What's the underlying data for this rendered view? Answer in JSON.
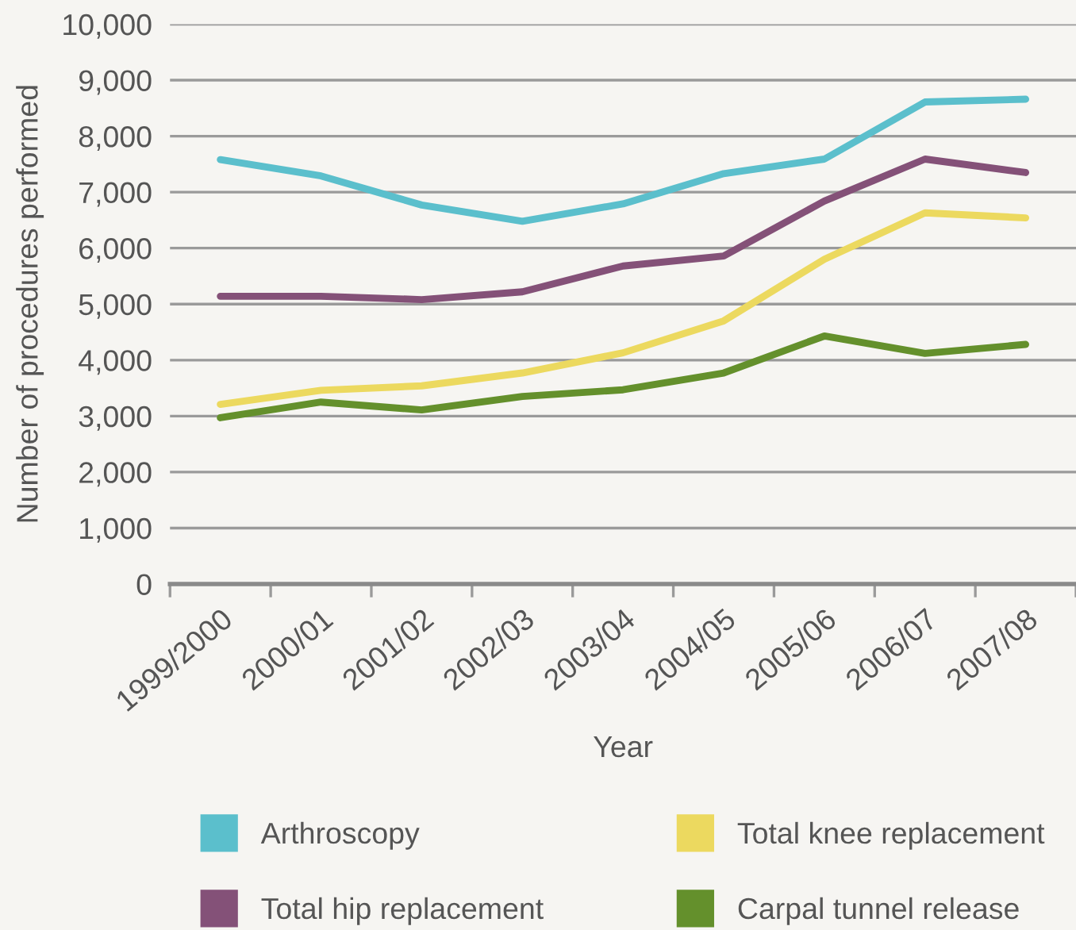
{
  "chart_data": {
    "type": "line",
    "xlabel": "Year",
    "ylabel": "Number of procedures performed",
    "categories": [
      "1999/2000",
      "2000/01",
      "2001/02",
      "2002/03",
      "2003/04",
      "2004/05",
      "2005/06",
      "2006/07",
      "2007/08"
    ],
    "series": [
      {
        "name": "Arthroscopy",
        "color": "#5bbfcc",
        "values": [
          7580,
          7290,
          6770,
          6480,
          6790,
          7330,
          7590,
          8610,
          8660
        ]
      },
      {
        "name": "Total hip replacement",
        "color": "#845178",
        "values": [
          5140,
          5140,
          5080,
          5220,
          5680,
          5860,
          6840,
          7590,
          7350
        ]
      },
      {
        "name": "Total knee replacement",
        "color": "#ecd95f",
        "values": [
          3210,
          3460,
          3540,
          3770,
          4130,
          4700,
          5800,
          6630,
          6540
        ]
      },
      {
        "name": "Carpal tunnel release",
        "color": "#64902c",
        "values": [
          2970,
          3250,
          3110,
          3350,
          3470,
          3770,
          4430,
          4120,
          4280
        ]
      }
    ],
    "ylim": [
      0,
      10000
    ],
    "yticks": [
      0,
      {
        "value": 1000,
        "label": "1,000"
      },
      {
        "value": 2000,
        "label": "2,000"
      },
      {
        "value": 3000,
        "label": "3,000"
      },
      {
        "value": 4000,
        "label": "4,000"
      },
      {
        "value": 5000,
        "label": "5,000"
      },
      {
        "value": 6000,
        "label": "6,000"
      },
      {
        "value": 7000,
        "label": "7,000"
      },
      {
        "value": 8000,
        "label": "8,000"
      },
      {
        "value": 9000,
        "label": "9,000"
      },
      {
        "value": 10000,
        "label": "10,000"
      }
    ],
    "grid": "y",
    "legend": "bottom"
  }
}
